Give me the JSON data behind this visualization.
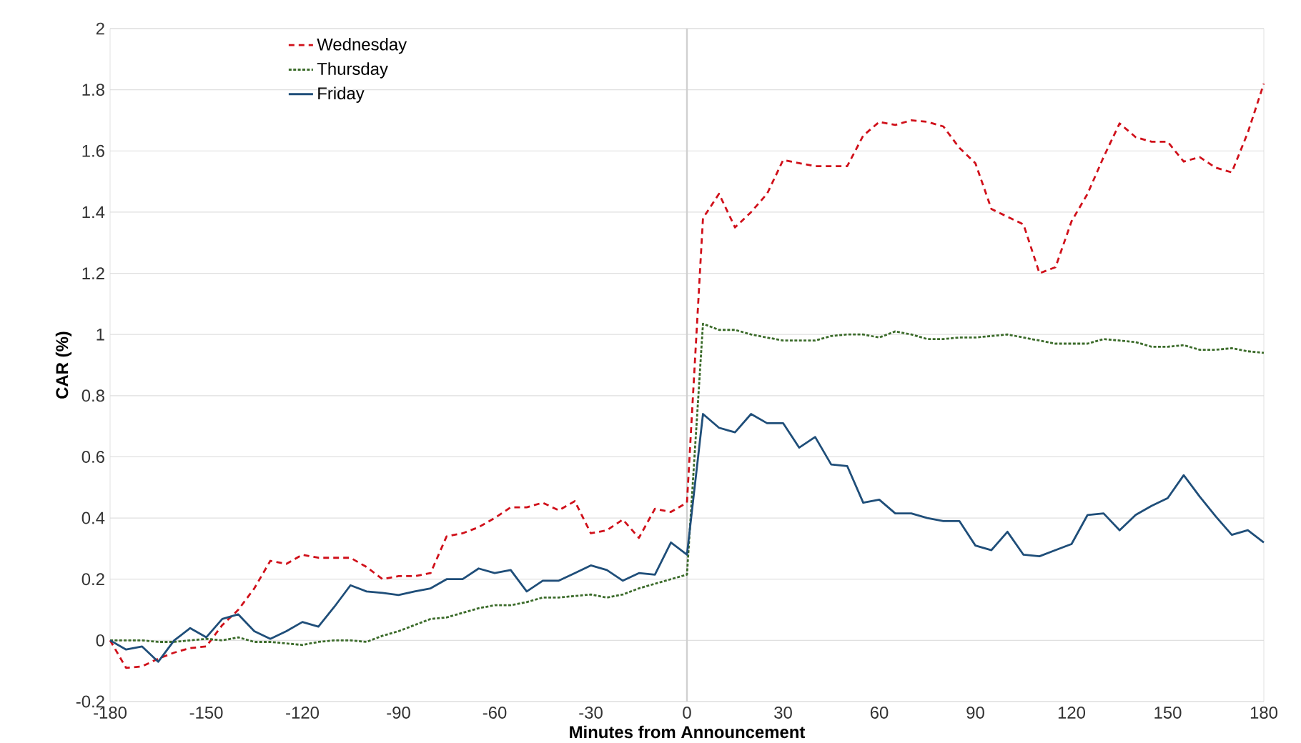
{
  "chart_data": {
    "type": "line",
    "xlabel": "Minutes from Announcement",
    "ylabel": "CAR (%)",
    "x": [
      -180,
      -175,
      -170,
      -165,
      -160,
      -155,
      -150,
      -145,
      -140,
      -135,
      -130,
      -125,
      -120,
      -115,
      -110,
      -105,
      -100,
      -95,
      -90,
      -85,
      -80,
      -75,
      -70,
      -65,
      -60,
      -55,
      -50,
      -45,
      -40,
      -35,
      -30,
      -25,
      -20,
      -15,
      -10,
      -5,
      0,
      5,
      10,
      15,
      20,
      25,
      30,
      35,
      40,
      45,
      50,
      55,
      60,
      65,
      70,
      75,
      80,
      85,
      90,
      95,
      100,
      105,
      110,
      115,
      120,
      125,
      130,
      135,
      140,
      145,
      150,
      155,
      160,
      165,
      170,
      175,
      180
    ],
    "series": [
      {
        "name": "Wednesday",
        "color": "#d0101a",
        "line_style": "dashed",
        "values": [
          0,
          -0.09,
          -0.085,
          -0.06,
          -0.04,
          -0.025,
          -0.02,
          0.05,
          0.1,
          0.17,
          0.26,
          0.25,
          0.28,
          0.27,
          0.27,
          0.27,
          0.24,
          0.2,
          0.21,
          0.21,
          0.22,
          0.34,
          0.35,
          0.37,
          0.4,
          0.435,
          0.435,
          0.45,
          0.425,
          0.455,
          0.35,
          0.36,
          0.395,
          0.335,
          0.43,
          0.42,
          0.45,
          1.38,
          1.46,
          1.35,
          1.4,
          1.46,
          1.57,
          1.56,
          1.55,
          1.55,
          1.55,
          1.65,
          1.695,
          1.685,
          1.7,
          1.695,
          1.68,
          1.61,
          1.56,
          1.41,
          1.385,
          1.36,
          1.2,
          1.22,
          1.37,
          1.46,
          1.58,
          1.69,
          1.645,
          1.63,
          1.63,
          1.565,
          1.58,
          1.545,
          1.53,
          1.66,
          1.82
        ]
      },
      {
        "name": "Thursday",
        "color": "#3b6b2a",
        "line_style": "dotted",
        "values": [
          0,
          0,
          0,
          -0.005,
          -0.005,
          0,
          0.005,
          0,
          0.01,
          -0.005,
          -0.005,
          -0.01,
          -0.015,
          -0.005,
          0,
          0,
          -0.005,
          0.015,
          0.03,
          0.05,
          0.07,
          0.075,
          0.09,
          0.105,
          0.115,
          0.115,
          0.125,
          0.14,
          0.14,
          0.145,
          0.15,
          0.14,
          0.15,
          0.17,
          0.185,
          0.2,
          0.215,
          1.035,
          1.015,
          1.015,
          1.0,
          0.99,
          0.98,
          0.98,
          0.98,
          0.995,
          1.0,
          1.0,
          0.99,
          1.01,
          1.0,
          0.985,
          0.985,
          0.99,
          0.99,
          0.995,
          1.0,
          0.99,
          0.98,
          0.97,
          0.97,
          0.97,
          0.985,
          0.98,
          0.975,
          0.96,
          0.96,
          0.965,
          0.95,
          0.95,
          0.955,
          0.945,
          0.94
        ]
      },
      {
        "name": "Friday",
        "color": "#1f4e79",
        "line_style": "solid",
        "values": [
          0,
          -0.03,
          -0.02,
          -0.07,
          0,
          0.04,
          0.01,
          0.07,
          0.085,
          0.03,
          0.005,
          0.03,
          0.06,
          0.045,
          0.11,
          0.18,
          0.16,
          0.155,
          0.148,
          0.16,
          0.17,
          0.2,
          0.2,
          0.235,
          0.22,
          0.23,
          0.16,
          0.195,
          0.195,
          0.22,
          0.245,
          0.23,
          0.195,
          0.22,
          0.215,
          0.32,
          0.28,
          0.74,
          0.695,
          0.68,
          0.74,
          0.71,
          0.71,
          0.63,
          0.665,
          0.575,
          0.57,
          0.45,
          0.46,
          0.415,
          0.415,
          0.4,
          0.39,
          0.39,
          0.31,
          0.295,
          0.355,
          0.28,
          0.275,
          0.295,
          0.315,
          0.41,
          0.415,
          0.36,
          0.41,
          0.44,
          0.465,
          0.54,
          0.47,
          0.405,
          0.345,
          0.36,
          0.32
        ]
      }
    ],
    "xlim": [
      -180,
      180
    ],
    "xticks": [
      -180,
      -150,
      -120,
      -90,
      -60,
      -30,
      0,
      30,
      60,
      90,
      120,
      150,
      180
    ],
    "ylim": [
      -0.2,
      2
    ],
    "yticks": [
      -0.2,
      0,
      0.2,
      0.4,
      0.6,
      0.8,
      1,
      1.2,
      1.4,
      1.6,
      1.8,
      2
    ],
    "ref_lines": [
      {
        "axis": "x",
        "value": 0,
        "color": "#d0d0d0"
      }
    ],
    "grid": "y",
    "legend": "top left",
    "marker": "none"
  }
}
